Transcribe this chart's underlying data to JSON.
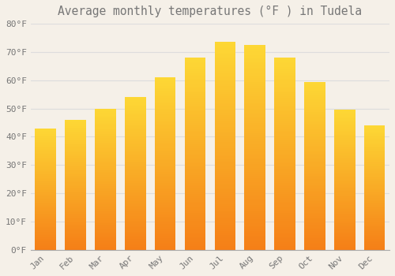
{
  "title": "Average monthly temperatures (°F ) in Tudela",
  "months": [
    "Jan",
    "Feb",
    "Mar",
    "Apr",
    "May",
    "Jun",
    "Jul",
    "Aug",
    "Sep",
    "Oct",
    "Nov",
    "Dec"
  ],
  "values": [
    43,
    46,
    50,
    54,
    61,
    68,
    73.5,
    72.5,
    68,
    59.5,
    49.5,
    44
  ],
  "bar_color_top": "#FDD835",
  "bar_color_bottom": "#F57F17",
  "background_color": "#F5F0E8",
  "grid_color": "#DDDDDD",
  "text_color": "#777777",
  "ylim": [
    0,
    80
  ],
  "yticks": [
    0,
    10,
    20,
    30,
    40,
    50,
    60,
    70,
    80
  ],
  "ytick_labels": [
    "0°F",
    "10°F",
    "20°F",
    "30°F",
    "40°F",
    "50°F",
    "60°F",
    "70°F",
    "80°F"
  ],
  "title_fontsize": 10.5,
  "tick_fontsize": 8,
  "font_family": "monospace",
  "bar_width": 0.7,
  "gradient_steps": 100
}
